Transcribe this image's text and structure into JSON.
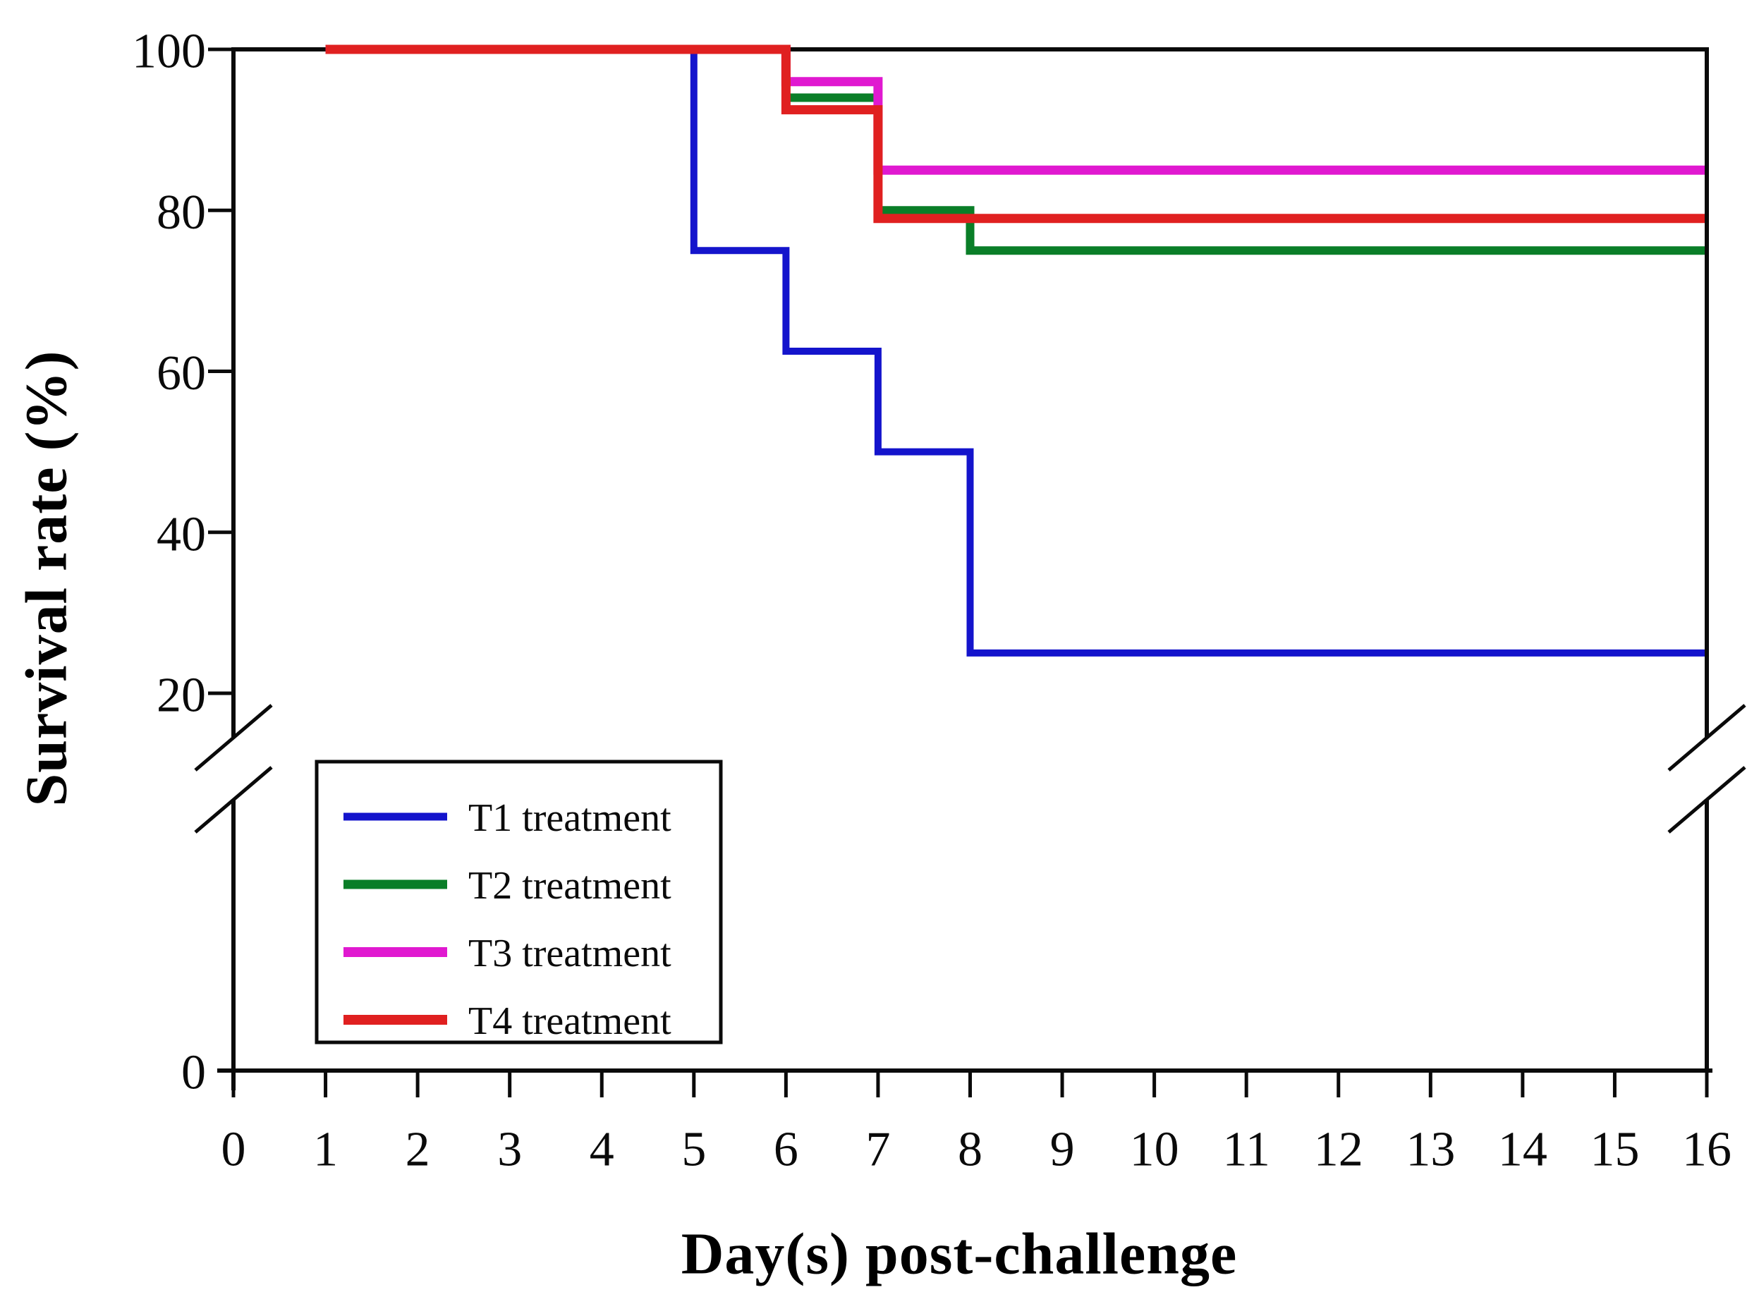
{
  "figure": {
    "background": "#ffffff",
    "axis_color": "#0a0a0a",
    "text_color": "#0a0a0a"
  },
  "chart_data": {
    "type": "line",
    "subtype": "step-survival-curve",
    "title": "",
    "xlabel": "Day(s) post-challenge",
    "ylabel": "Survival rate (%)",
    "xlim": [
      0,
      16
    ],
    "ylim": [
      0,
      100
    ],
    "grid": false,
    "x_tick_labels": [
      "0",
      "1",
      "2",
      "3",
      "4",
      "5",
      "6",
      "7",
      "8",
      "9",
      "10",
      "11",
      "12",
      "13",
      "14",
      "15",
      "16"
    ],
    "x_tick_values": [
      0,
      1,
      2,
      3,
      4,
      5,
      6,
      7,
      8,
      9,
      10,
      11,
      12,
      13,
      14,
      15,
      16
    ],
    "y_tick_labels": [
      "100",
      "80",
      "60",
      "40",
      "20"
    ],
    "y_tick_values": [
      100,
      80,
      60,
      40,
      20
    ],
    "y_zero_label": "0",
    "y_axis_break": {
      "between": [
        0,
        20
      ],
      "style": "double-slash",
      "on_left_axis": true,
      "on_right_axis": true
    },
    "legend_position": "lower-left-inside",
    "series": [
      {
        "name": "T1 treatment",
        "color": "#1414cc",
        "stroke_width": 10,
        "points": [
          [
            1,
            100
          ],
          [
            5,
            100
          ],
          [
            5,
            75
          ],
          [
            6,
            75
          ],
          [
            6,
            62.5
          ],
          [
            7,
            62.5
          ],
          [
            7,
            50
          ],
          [
            8,
            50
          ],
          [
            8,
            25
          ],
          [
            16,
            25
          ]
        ]
      },
      {
        "name": "T2 treatment",
        "color": "#0a7e28",
        "stroke_width": 12,
        "points": [
          [
            1,
            100
          ],
          [
            6,
            100
          ],
          [
            6,
            94
          ],
          [
            7,
            94
          ],
          [
            7,
            80
          ],
          [
            8,
            80
          ],
          [
            8,
            75
          ],
          [
            16,
            75
          ]
        ]
      },
      {
        "name": "T3 treatment",
        "color": "#e019d0",
        "stroke_width": 13,
        "points": [
          [
            1,
            100
          ],
          [
            6,
            100
          ],
          [
            6,
            96
          ],
          [
            7,
            96
          ],
          [
            7,
            85
          ],
          [
            16,
            85
          ]
        ]
      },
      {
        "name": "T4 treatment",
        "color": "#e02020",
        "stroke_width": 13,
        "points": [
          [
            1,
            100
          ],
          [
            6,
            100
          ],
          [
            6,
            92.5
          ],
          [
            7,
            92.5
          ],
          [
            7,
            79
          ],
          [
            16,
            79
          ]
        ]
      }
    ]
  }
}
